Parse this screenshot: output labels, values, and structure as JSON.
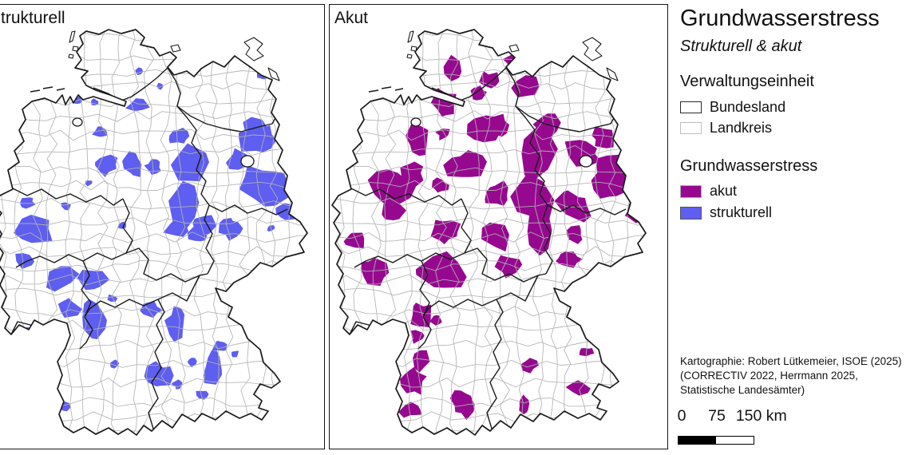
{
  "maps": [
    {
      "id": "strukturell",
      "label": "Strukturell",
      "color": "#5e5ef0"
    },
    {
      "id": "akut",
      "label": "Akut",
      "color": "#96098f"
    }
  ],
  "legend": {
    "title": "Grundwasserstress",
    "subtitle": "Strukturell & akut",
    "admin_section": {
      "title": "Verwaltungseinheit",
      "items": [
        {
          "label": "Bundesland",
          "border_color": "#2a2a2a"
        },
        {
          "label": "Landkreis",
          "border_color": "#bdbdbd"
        }
      ]
    },
    "stress_section": {
      "title": "Grundwasserstress",
      "items": [
        {
          "label": "akut",
          "color": "#96098f"
        },
        {
          "label": "strukturell",
          "color": "#5e5ef0"
        }
      ]
    },
    "attribution_lines": [
      "Kartographie: Robert Lütkemeier, ISOE (2025)",
      "(CORRECTIV 2022, Herrmann 2025,",
      "Statistische Landesämter)"
    ],
    "scalebar": {
      "labels": [
        "0",
        "75",
        "150 km"
      ]
    }
  },
  "colors": {
    "bundesland_border": "#1a1a1a",
    "landkreis_border": "#b3b3b3",
    "land_fill": "#ffffff"
  },
  "map_data": {
    "note": "approximate centers of stressed districts in map viewBox coordinates [x,y,rx,ry]",
    "strukturell_regions": [
      [
        185,
        83,
        5,
        5
      ],
      [
        212,
        102,
        5,
        4
      ],
      [
        184,
        127,
        13,
        9
      ],
      [
        109,
        120,
        5,
        4
      ],
      [
        129,
        122,
        5,
        4
      ],
      [
        342,
        85,
        9,
        8
      ],
      [
        357,
        105,
        8,
        7
      ],
      [
        332,
        150,
        15,
        11
      ],
      [
        335,
        170,
        26,
        18
      ],
      [
        344,
        225,
        30,
        26
      ],
      [
        310,
        196,
        16,
        14
      ],
      [
        397,
        205,
        10,
        28
      ],
      [
        371,
        262,
        14,
        12
      ],
      [
        235,
        165,
        12,
        10
      ],
      [
        250,
        200,
        21,
        23
      ],
      [
        242,
        252,
        18,
        26
      ],
      [
        257,
        287,
        13,
        11
      ],
      [
        137,
        160,
        9,
        7
      ],
      [
        144,
        200,
        17,
        14
      ],
      [
        177,
        200,
        13,
        17
      ],
      [
        203,
        203,
        10,
        8
      ],
      [
        45,
        247,
        9,
        7
      ],
      [
        54,
        282,
        22,
        24
      ],
      [
        93,
        252,
        6,
        5
      ],
      [
        122,
        223,
        5,
        4
      ],
      [
        165,
        276,
        6,
        5
      ],
      [
        232,
        281,
        14,
        12
      ],
      [
        268,
        276,
        17,
        17
      ],
      [
        300,
        280,
        13,
        13
      ],
      [
        350,
        280,
        5,
        4
      ],
      [
        42,
        320,
        15,
        12
      ],
      [
        87,
        340,
        20,
        17
      ],
      [
        127,
        345,
        18,
        15
      ],
      [
        97,
        380,
        14,
        12
      ],
      [
        129,
        395,
        16,
        25
      ],
      [
        56,
        413,
        17,
        10
      ],
      [
        152,
        368,
        6,
        5
      ],
      [
        200,
        382,
        14,
        9
      ],
      [
        232,
        400,
        13,
        22
      ],
      [
        287,
        428,
        11,
        6
      ],
      [
        305,
        437,
        5,
        4
      ],
      [
        277,
        455,
        12,
        22
      ],
      [
        252,
        447,
        7,
        6
      ],
      [
        209,
        465,
        20,
        16
      ],
      [
        234,
        475,
        7,
        6
      ],
      [
        264,
        488,
        7,
        6
      ],
      [
        92,
        502,
        8,
        6
      ],
      [
        154,
        450,
        6,
        5
      ]
    ],
    "akut_regions": [
      [
        154,
        80,
        15,
        17
      ],
      [
        201,
        96,
        14,
        12
      ],
      [
        233,
        70,
        16,
        12
      ],
      [
        246,
        103,
        18,
        15
      ],
      [
        185,
        110,
        10,
        9
      ],
      [
        144,
        124,
        16,
        19
      ],
      [
        191,
        156,
        24,
        21
      ],
      [
        110,
        168,
        15,
        22
      ],
      [
        143,
        161,
        9,
        8
      ],
      [
        211,
        153,
        16,
        14
      ],
      [
        273,
        150,
        15,
        13
      ],
      [
        343,
        166,
        15,
        14
      ],
      [
        261,
        186,
        26,
        32
      ],
      [
        316,
        186,
        25,
        17
      ],
      [
        354,
        206,
        36,
        26
      ],
      [
        171,
        201,
        24,
        19
      ],
      [
        103,
        212,
        15,
        13
      ],
      [
        78,
        225,
        26,
        22
      ],
      [
        138,
        227,
        10,
        9
      ],
      [
        211,
        237,
        17,
        15
      ],
      [
        255,
        245,
        29,
        31
      ],
      [
        306,
        253,
        22,
        20
      ],
      [
        354,
        225,
        27,
        22
      ],
      [
        383,
        261,
        12,
        11
      ],
      [
        31,
        295,
        14,
        12
      ],
      [
        80,
        260,
        15,
        13
      ],
      [
        146,
        283,
        17,
        15
      ],
      [
        209,
        291,
        19,
        17
      ],
      [
        263,
        285,
        22,
        25
      ],
      [
        306,
        288,
        12,
        11
      ],
      [
        55,
        333,
        20,
        18
      ],
      [
        138,
        335,
        29,
        25
      ],
      [
        224,
        326,
        17,
        15
      ],
      [
        298,
        320,
        17,
        10
      ],
      [
        114,
        390,
        14,
        20
      ],
      [
        134,
        395,
        7,
        6
      ],
      [
        111,
        415,
        10,
        9
      ],
      [
        115,
        446,
        10,
        14
      ],
      [
        106,
        473,
        15,
        17
      ],
      [
        103,
        507,
        15,
        10
      ],
      [
        166,
        498,
        15,
        19
      ],
      [
        251,
        451,
        10,
        9
      ],
      [
        243,
        500,
        8,
        13
      ],
      [
        313,
        480,
        15,
        10
      ],
      [
        321,
        434,
        10,
        5
      ]
    ]
  }
}
